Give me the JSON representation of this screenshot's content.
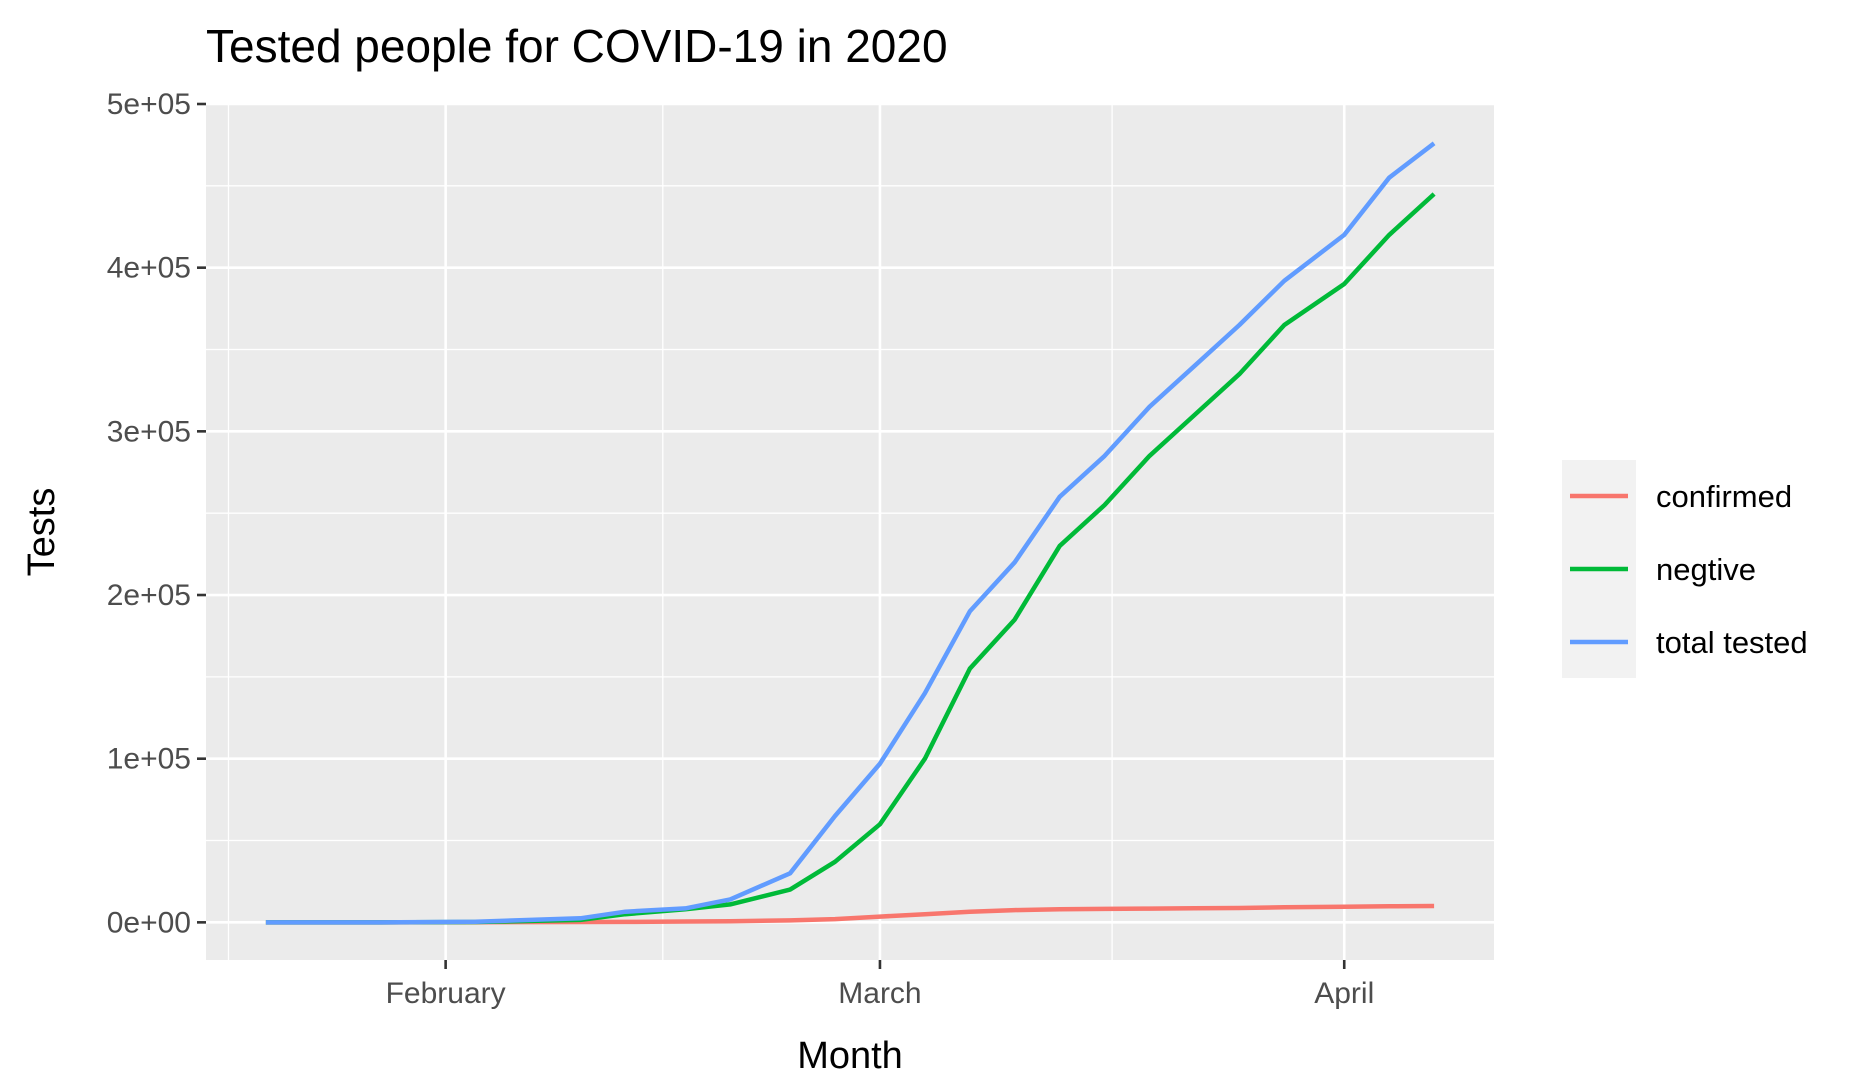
{
  "chart_data": {
    "type": "line",
    "title": "Tested people for COVID-19 in 2020",
    "xlabel": "Month",
    "ylabel": "Tests",
    "x_ticks": [
      {
        "date": "2020-02-01",
        "label": "February"
      },
      {
        "date": "2020-03-01",
        "label": "March"
      },
      {
        "date": "2020-04-01",
        "label": "April"
      }
    ],
    "y_ticks": [
      {
        "value": 0,
        "label": "0e+00"
      },
      {
        "value": 100000,
        "label": "1e+05"
      },
      {
        "value": 200000,
        "label": "2e+05"
      },
      {
        "value": 300000,
        "label": "3e+05"
      },
      {
        "value": 400000,
        "label": "4e+05"
      },
      {
        "value": 500000,
        "label": "5e+05"
      }
    ],
    "xlim": [
      "2020-01-16",
      "2020-04-11"
    ],
    "ylim": [
      -23000,
      500000
    ],
    "grid": true,
    "legend_position": "right",
    "panel_background": "#ebebeb",
    "x": [
      "2020-01-20",
      "2020-01-27",
      "2020-02-03",
      "2020-02-10",
      "2020-02-13",
      "2020-02-17",
      "2020-02-20",
      "2020-02-24",
      "2020-02-27",
      "2020-03-01",
      "2020-03-04",
      "2020-03-07",
      "2020-03-10",
      "2020-03-13",
      "2020-03-16",
      "2020-03-19",
      "2020-03-22",
      "2020-03-25",
      "2020-03-28",
      "2020-04-01",
      "2020-04-04",
      "2020-04-07"
    ],
    "series": [
      {
        "name": "confirmed",
        "color": "#f8766d",
        "values": [
          0,
          0,
          100,
          200,
          300,
          500,
          700,
          1200,
          2000,
          3500,
          5000,
          6500,
          7500,
          8000,
          8200,
          8400,
          8600,
          8800,
          9200,
          9500,
          9800,
          10000
        ]
      },
      {
        "name": "negtive",
        "color": "#00ba38",
        "values": [
          0,
          0,
          200,
          1500,
          5000,
          8000,
          11000,
          20000,
          37000,
          60000,
          100000,
          155000,
          185000,
          230000,
          255000,
          285000,
          310000,
          335000,
          365000,
          390000,
          420000,
          445000
        ]
      },
      {
        "name": "total tested",
        "color": "#619cff",
        "values": [
          0,
          0,
          400,
          2500,
          6500,
          8500,
          14000,
          30000,
          65000,
          97000,
          140000,
          190000,
          220000,
          260000,
          285000,
          315000,
          340000,
          365000,
          392000,
          420000,
          455000,
          476000
        ]
      }
    ]
  }
}
